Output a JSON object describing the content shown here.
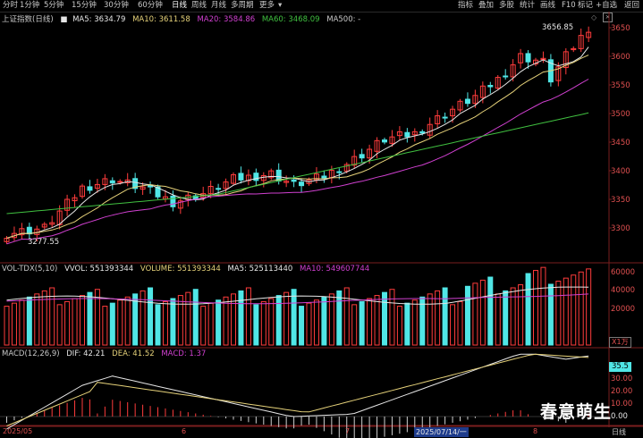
{
  "toolbar": {
    "timeframes": [
      "分时",
      "1分钟",
      "5分钟",
      "15分钟",
      "30分钟",
      "60分钟",
      "日线",
      "周线",
      "月线",
      "多周期",
      "更多"
    ],
    "active_index": 6,
    "right_items": [
      "指标",
      "叠加",
      "多股",
      "统计",
      "画线",
      "F10",
      "标记",
      "+自选",
      "返回"
    ]
  },
  "main": {
    "title": "上证指数(日线)",
    "ma": [
      {
        "label": "MA5: 3634.79",
        "color": "#e6e6e6"
      },
      {
        "label": "MA10: 3611.58",
        "color": "#e6d27a"
      },
      {
        "label": "MA20: 3584.86",
        "color": "#d040d0"
      },
      {
        "label": "MA60: 3468.09",
        "color": "#40c040"
      },
      {
        "label": "MA500: -",
        "color": "#c8c8c8"
      }
    ],
    "high_label": "3656.85",
    "low_label": "3277.55",
    "axis": [
      "3650",
      "3600",
      "3550",
      "3500",
      "3450",
      "3400",
      "3350",
      "3300"
    ]
  },
  "vol": {
    "title": "VOL-TDX(5,10)",
    "items": [
      {
        "label": "VVOL: 551393344",
        "color": "#e6e6e6"
      },
      {
        "label": "VOLUME: 551393344",
        "color": "#e6d27a"
      },
      {
        "label": "MA5: 525113440",
        "color": "#e6e6e6"
      },
      {
        "label": "MA10: 549607744",
        "color": "#d040d0"
      }
    ],
    "axis": [
      "60000",
      "40000",
      "20000"
    ],
    "unit": "X1万"
  },
  "macd": {
    "title": "MACD(12,26,9)",
    "items": [
      {
        "label": "DIF: 42.21",
        "color": "#e6e6e6"
      },
      {
        "label": "DEA: 41.52",
        "color": "#e6d27a"
      },
      {
        "label": "MACD: 1.37",
        "color": "#d040d0"
      }
    ],
    "axis": [
      "35.5",
      "30.00",
      "20.00",
      "10.00",
      "0.00"
    ]
  },
  "dates": [
    "2025/05",
    "6",
    "7",
    "2025/07/14/一",
    "8",
    "日线"
  ],
  "watermark": "春意萌生",
  "colors": {
    "up": "#ff3c3c",
    "down": "#50e6e6",
    "ma5": "#e6e6e6",
    "ma10": "#e6d27a",
    "ma20": "#d040d0",
    "ma60": "#40c040"
  }
}
